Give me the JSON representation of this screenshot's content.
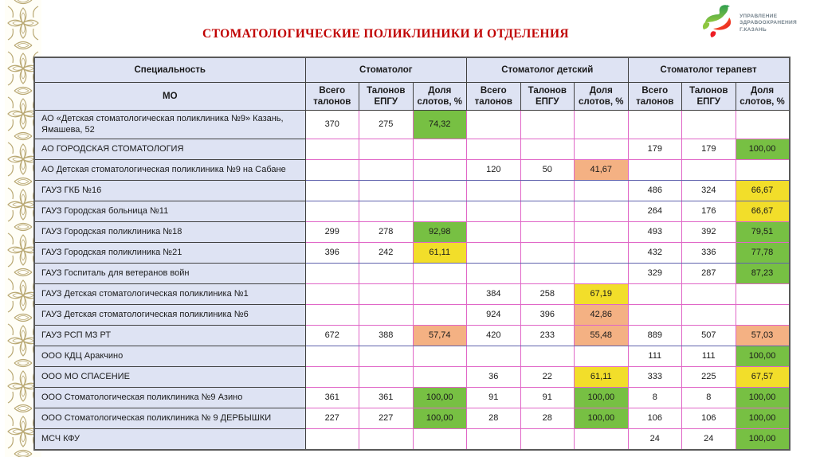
{
  "page": {
    "title": "СТОМАТОЛОГИЧЕСКИЕ ПОЛИКЛИНИКИ И ОТДЕЛЕНИЯ"
  },
  "logo": {
    "icon": "zilant-dragon-icon",
    "line1": "УПРАВЛЕНИЕ",
    "line2": "ЗДРАВООХРАНЕНИЯ",
    "line3": "Г.КАЗАНЬ"
  },
  "colors": {
    "title_red": "#c00000",
    "header_bg": "#dee3f3",
    "good_green": "#77c043",
    "mid_yellow": "#f2de2a",
    "low_orange": "#f4b183",
    "grid_pink": "#e066c7",
    "grid_blue": "#6062ad",
    "ornament_tan": "#b9a873"
  },
  "table": {
    "col_specialty": "Специальность",
    "col_mo": "МО",
    "groups": [
      "Стоматолог",
      "Стоматолог детский",
      "Стоматолог терапевт"
    ],
    "sub": [
      "Всего талонов",
      "Талонов ЕПГУ",
      "Доля слотов, %"
    ],
    "rows": [
      {
        "mo": "АО «Детская стоматологическая поликлиника №9» Казань, Ямашева, 52",
        "cells": [
          {
            "v": "370"
          },
          {
            "v": "275"
          },
          {
            "v": "74,32",
            "c": "green"
          },
          {},
          {},
          {},
          {},
          {},
          {}
        ]
      },
      {
        "mo": "АО ГОРОДСКАЯ СТОМАТОЛОГИЯ",
        "cells": [
          {},
          {},
          {},
          {},
          {},
          {},
          {
            "v": "179"
          },
          {
            "v": "179"
          },
          {
            "v": "100,00",
            "c": "green"
          }
        ]
      },
      {
        "mo": "АО Детская стоматологическая поликлиника №9 на Сабане",
        "cells": [
          {},
          {},
          {},
          {
            "v": "120"
          },
          {
            "v": "50"
          },
          {
            "v": "41,67",
            "c": "orange"
          },
          {},
          {},
          {}
        ]
      },
      {
        "mo": "ГАУЗ ГКБ №16",
        "cells": [
          {},
          {},
          {},
          {},
          {},
          {},
          {
            "v": "486"
          },
          {
            "v": "324"
          },
          {
            "v": "66,67",
            "c": "yellow"
          }
        ]
      },
      {
        "mo": "ГАУЗ Городская больница №11",
        "cells": [
          {},
          {},
          {},
          {},
          {},
          {},
          {
            "v": "264"
          },
          {
            "v": "176"
          },
          {
            "v": "66,67",
            "c": "yellow"
          }
        ]
      },
      {
        "mo": "ГАУЗ Городская поликлиника №18",
        "cells": [
          {
            "v": "299"
          },
          {
            "v": "278"
          },
          {
            "v": "92,98",
            "c": "green"
          },
          {},
          {},
          {},
          {
            "v": "493"
          },
          {
            "v": "392"
          },
          {
            "v": "79,51",
            "c": "green"
          }
        ]
      },
      {
        "mo": "ГАУЗ Городская поликлиника №21",
        "cells": [
          {
            "v": "396"
          },
          {
            "v": "242"
          },
          {
            "v": "61,11",
            "c": "yellow"
          },
          {},
          {},
          {},
          {
            "v": "432"
          },
          {
            "v": "336"
          },
          {
            "v": "77,78",
            "c": "green"
          }
        ]
      },
      {
        "mo": "ГАУЗ Госпиталь для ветеранов войн",
        "cells": [
          {},
          {},
          {},
          {},
          {},
          {},
          {
            "v": "329"
          },
          {
            "v": "287"
          },
          {
            "v": "87,23",
            "c": "green"
          }
        ]
      },
      {
        "mo": "ГАУЗ Детская стоматологическая поликлиника №1",
        "cells": [
          {},
          {},
          {},
          {
            "v": "384"
          },
          {
            "v": "258"
          },
          {
            "v": "67,19",
            "c": "yellow"
          },
          {},
          {},
          {}
        ]
      },
      {
        "mo": "ГАУЗ Детская стоматологическая поликлиника №6",
        "cells": [
          {},
          {},
          {},
          {
            "v": "924"
          },
          {
            "v": "396"
          },
          {
            "v": "42,86",
            "c": "orange"
          },
          {},
          {},
          {}
        ]
      },
      {
        "mo": "ГАУЗ РСП МЗ РТ",
        "cells": [
          {
            "v": "672"
          },
          {
            "v": "388"
          },
          {
            "v": "57,74",
            "c": "orange"
          },
          {
            "v": "420"
          },
          {
            "v": "233"
          },
          {
            "v": "55,48",
            "c": "orange"
          },
          {
            "v": "889"
          },
          {
            "v": "507"
          },
          {
            "v": "57,03",
            "c": "orange"
          }
        ]
      },
      {
        "mo": "ООО КДЦ Аракчино",
        "cells": [
          {},
          {},
          {},
          {},
          {},
          {},
          {
            "v": "111"
          },
          {
            "v": "111"
          },
          {
            "v": "100,00",
            "c": "green"
          }
        ]
      },
      {
        "mo": "ООО МО СПАСЕНИЕ",
        "cells": [
          {},
          {},
          {},
          {
            "v": "36"
          },
          {
            "v": "22"
          },
          {
            "v": "61,11",
            "c": "yellow"
          },
          {
            "v": "333"
          },
          {
            "v": "225"
          },
          {
            "v": "67,57",
            "c": "yellow"
          }
        ]
      },
      {
        "mo": "ООО Стоматологическая поликлиника №9 Азино",
        "cells": [
          {
            "v": "361"
          },
          {
            "v": "361"
          },
          {
            "v": "100,00",
            "c": "green"
          },
          {
            "v": "91"
          },
          {
            "v": "91"
          },
          {
            "v": "100,00",
            "c": "green"
          },
          {
            "v": "8"
          },
          {
            "v": "8"
          },
          {
            "v": "100,00",
            "c": "green"
          }
        ]
      },
      {
        "mo": "ООО Стоматологическая поликлиника № 9 ДЕРБЫШКИ",
        "cells": [
          {
            "v": "227"
          },
          {
            "v": "227"
          },
          {
            "v": "100,00",
            "c": "green"
          },
          {
            "v": "28"
          },
          {
            "v": "28"
          },
          {
            "v": "100,00",
            "c": "green"
          },
          {
            "v": "106"
          },
          {
            "v": "106"
          },
          {
            "v": "100,00",
            "c": "green"
          }
        ]
      },
      {
        "mo": "МСЧ КФУ",
        "cells": [
          {},
          {},
          {},
          {},
          {},
          {},
          {
            "v": "24"
          },
          {
            "v": "24"
          },
          {
            "v": "100,00",
            "c": "green"
          }
        ]
      }
    ]
  }
}
